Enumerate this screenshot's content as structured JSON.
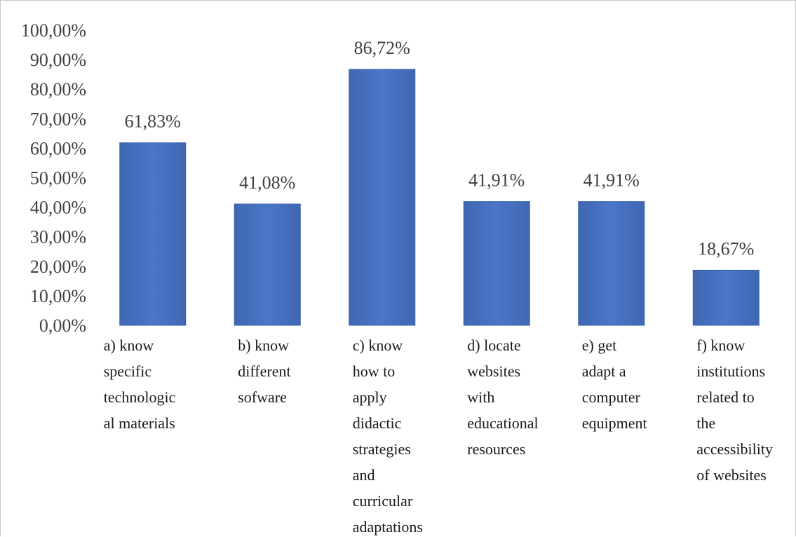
{
  "chart_data": {
    "type": "bar",
    "categories": [
      "a)  know specific technological materials",
      "b) know different sofware",
      "c) know how to apply didactic strategies and curricular adaptations",
      "d) locate websites with educational resources",
      "e) get adapt a computer equipment",
      "f) know institutions related to the accessibility of websites"
    ],
    "category_lines": [
      [
        "a)  know",
        "specific",
        "technologic",
        "al materials"
      ],
      [
        "b) know",
        "different",
        "sofware"
      ],
      [
        "c) know",
        "how to",
        "apply",
        "didactic",
        "strategies",
        "and",
        "curricular",
        "adaptations"
      ],
      [
        "d) locate",
        "websites",
        "with",
        "educational",
        "resources"
      ],
      [
        "e) get",
        "adapt a",
        "computer",
        "equipment"
      ],
      [
        "f) know",
        "institutions",
        "related to",
        "the",
        "accessibility",
        "of websites"
      ]
    ],
    "values": [
      61.83,
      41.08,
      86.72,
      41.91,
      41.91,
      18.67
    ],
    "data_labels": [
      "61,83%",
      "41,08%",
      "86,72%",
      "41,91%",
      "41,91%",
      "18,67%"
    ],
    "y_ticks": [
      "0,00%",
      "10,00%",
      "20,00%",
      "30,00%",
      "40,00%",
      "50,00%",
      "60,00%",
      "70,00%",
      "80,00%",
      "90,00%",
      "100,00%"
    ],
    "ylim": [
      0,
      100
    ],
    "title": "",
    "xlabel": "",
    "ylabel": "",
    "grid": false,
    "legend": "none",
    "bar_color": "#4472c4"
  }
}
